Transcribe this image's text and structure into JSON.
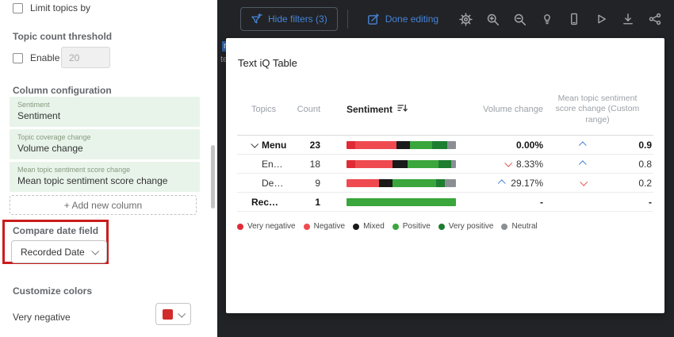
{
  "sidebar": {
    "limit_topics_label": "Limit topics by",
    "topic_count_heading": "Topic count threshold",
    "enable_label": "Enable",
    "threshold_value": "20",
    "column_config_heading": "Column configuration",
    "columns": [
      {
        "type": "Sentiment",
        "value": "Sentiment"
      },
      {
        "type": "Topic coverage change",
        "value": "Volume change"
      },
      {
        "type": "Mean topic sentiment score change",
        "value": "Mean topic sentiment score change"
      }
    ],
    "add_column_label": "+ Add new column",
    "compare_date_heading": "Compare date field",
    "compare_date_value": "Recorded Date",
    "customize_colors_heading": "Customize colors",
    "color_rows": [
      {
        "label": "Very negative",
        "swatch": "#d22b2b"
      }
    ]
  },
  "toolbar": {
    "hide_filters_label": "Hide filters (3)",
    "done_editing_label": "Done editing",
    "icon_names": [
      "gear-icon",
      "zoom-in-icon",
      "zoom-out-icon",
      "lightbulb-icon",
      "mobile-icon",
      "play-icon",
      "download-icon",
      "share-icon"
    ]
  },
  "overlay_fragments": {
    "f1": "n",
    "f2": "te"
  },
  "modal": {
    "title": "Text iQ Table",
    "headers": {
      "topics": "Topics",
      "count": "Count",
      "sentiment": "Sentiment",
      "volume": "Volume change",
      "mean": "Mean topic sentiment score change (Custom range)"
    },
    "palette": {
      "very_negative": "#e02b35",
      "negative": "#ee4a50",
      "mixed": "#1a1a1a",
      "positive": "#3aa63c",
      "very_positive": "#1d7d31",
      "neutral": "#8b8f93"
    },
    "rows": [
      {
        "topic": "Menu",
        "expandable": true,
        "bold": true,
        "indent": false,
        "count": "23",
        "bar": [
          [
            "very_negative",
            8
          ],
          [
            "negative",
            38
          ],
          [
            "mixed",
            12
          ],
          [
            "positive",
            20
          ],
          [
            "very_positive",
            14
          ],
          [
            "neutral",
            8
          ]
        ],
        "volume_dir": "",
        "volume": "0.00%",
        "mean_dir": "up",
        "mean": "0.9"
      },
      {
        "topic": "En…",
        "expandable": false,
        "bold": false,
        "indent": true,
        "count": "18",
        "bar": [
          [
            "very_negative",
            8
          ],
          [
            "negative",
            34
          ],
          [
            "mixed",
            14
          ],
          [
            "positive",
            28
          ],
          [
            "very_positive",
            12
          ],
          [
            "neutral",
            4
          ]
        ],
        "volume_dir": "down",
        "volume": "8.33%",
        "mean_dir": "up",
        "mean": "0.8"
      },
      {
        "topic": "De…",
        "expandable": false,
        "bold": false,
        "indent": true,
        "count": "9",
        "bar": [
          [
            "negative",
            30
          ],
          [
            "mixed",
            12
          ],
          [
            "positive",
            40
          ],
          [
            "very_positive",
            8
          ],
          [
            "neutral",
            10
          ]
        ],
        "volume_dir": "up",
        "volume": "29.17%",
        "mean_dir": "down",
        "mean": "0.2"
      },
      {
        "topic": "Rec…",
        "expandable": false,
        "bold": true,
        "indent": false,
        "count": "1",
        "bar": [
          [
            "positive",
            100
          ]
        ],
        "volume_dir": "",
        "volume": "-",
        "mean_dir": "",
        "mean": "-"
      }
    ],
    "legend": [
      {
        "label": "Very negative",
        "key": "very_negative"
      },
      {
        "label": "Negative",
        "key": "negative"
      },
      {
        "label": "Mixed",
        "key": "mixed"
      },
      {
        "label": "Positive",
        "key": "positive"
      },
      {
        "label": "Very positive",
        "key": "very_positive"
      },
      {
        "label": "Neutral",
        "key": "neutral"
      }
    ]
  }
}
